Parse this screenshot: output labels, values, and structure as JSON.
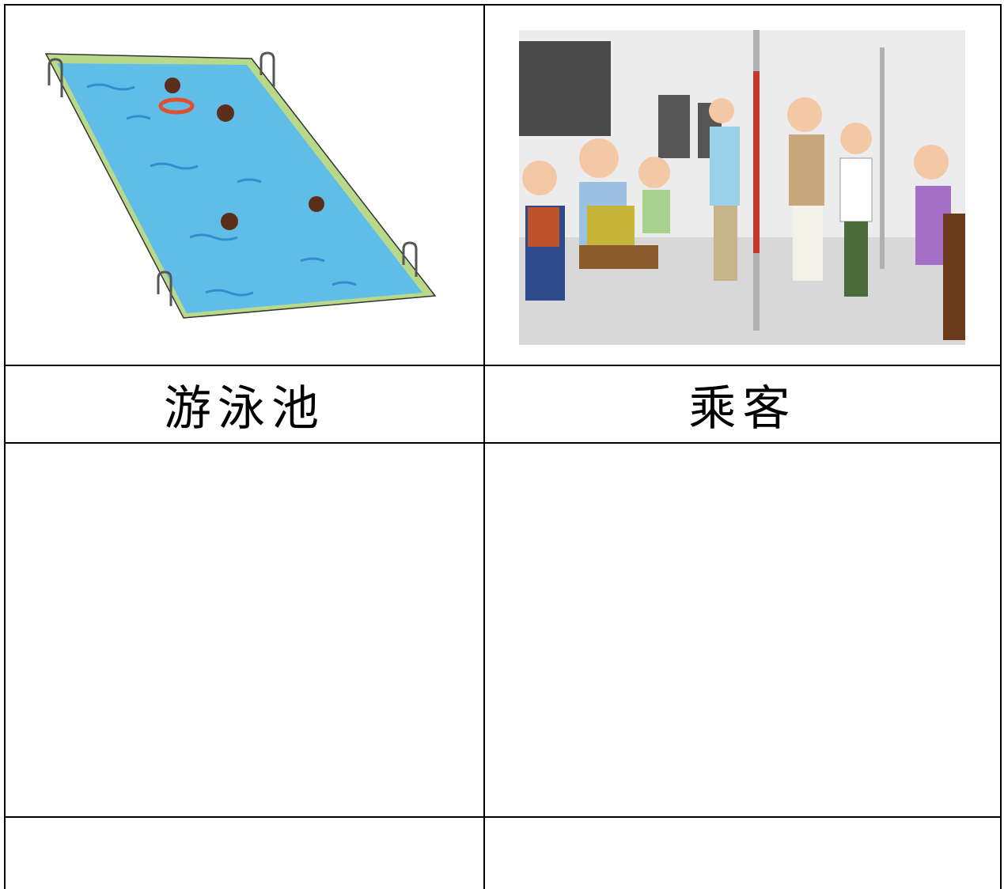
{
  "cards": [
    {
      "label": "游泳池"
    },
    {
      "label": "乘客"
    }
  ]
}
